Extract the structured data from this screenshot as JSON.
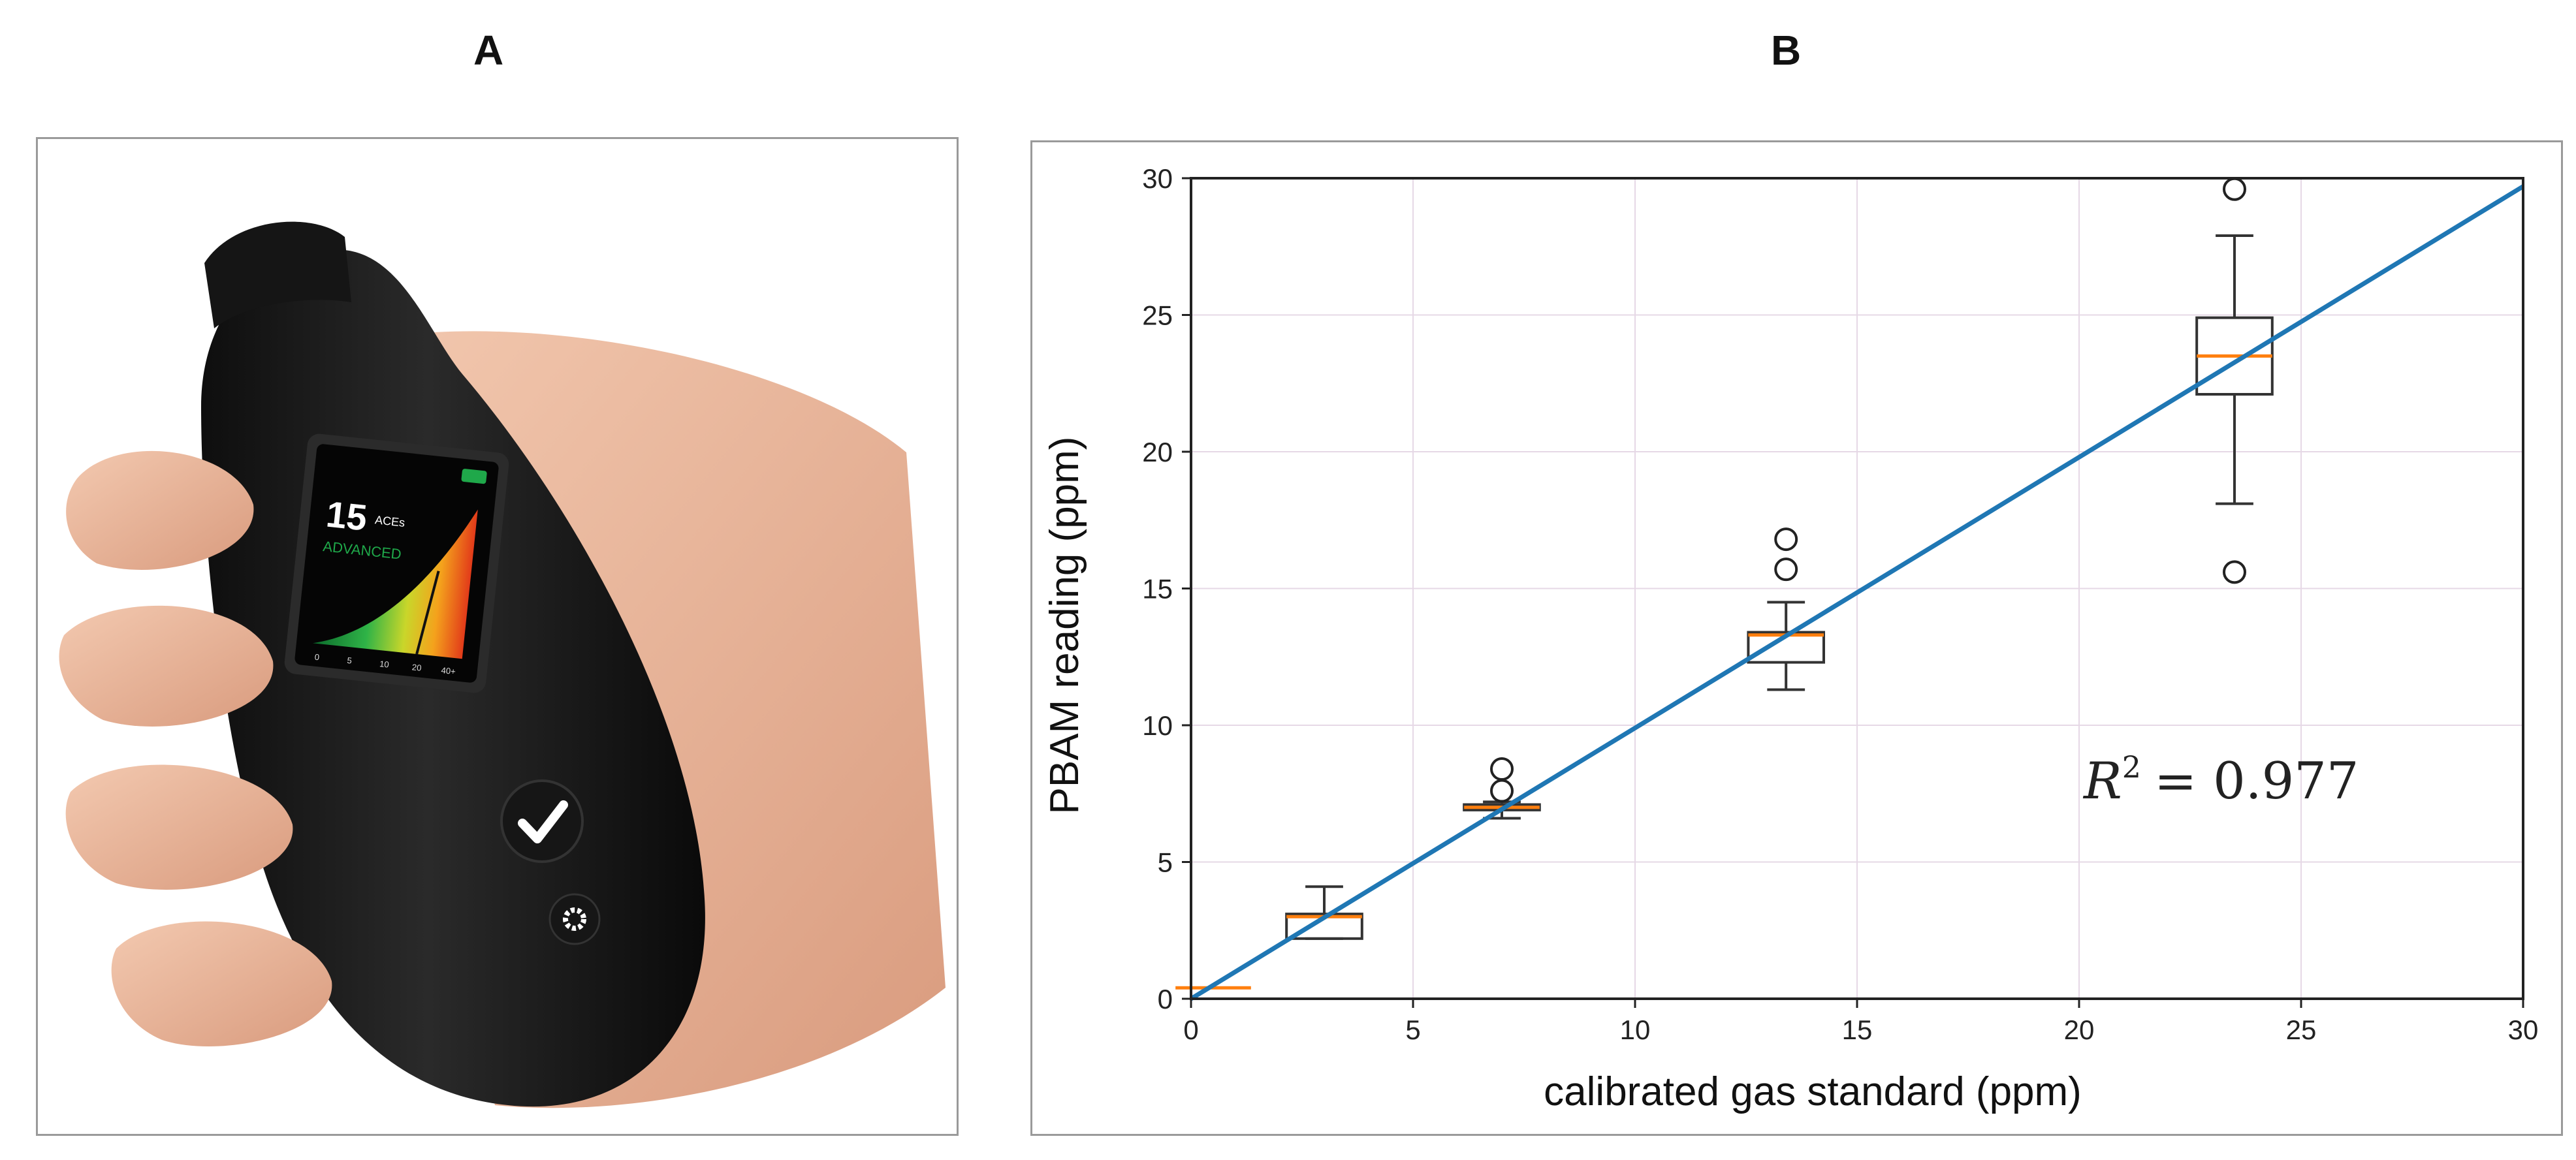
{
  "panels": {
    "a_label": "A",
    "b_label": "B"
  },
  "device": {
    "screen_value": "15",
    "screen_unit": "ACEs",
    "screen_status": "ADVANCED",
    "scale_ticks": [
      "0",
      "5",
      "10",
      "20",
      "40+"
    ],
    "check_icon": "check-icon",
    "settings_icon": "gear-icon",
    "battery_icon": "battery-icon",
    "colors": {
      "body": "#1a1a1a",
      "skin": "#e9b79c",
      "status_green": "#1fa84a"
    }
  },
  "chart_data": {
    "type": "box",
    "xlabel": "calibrated gas standard (ppm)",
    "ylabel": "PBAM reading (ppm)",
    "xlim": [
      0,
      30
    ],
    "ylim": [
      0,
      30
    ],
    "xticks": [
      0,
      5,
      10,
      15,
      20,
      25,
      30
    ],
    "yticks": [
      0,
      5,
      10,
      15,
      20,
      25,
      30
    ],
    "grid": true,
    "annotation": {
      "text": "R² = 0.977",
      "r_squared": "0.977"
    },
    "boxes": [
      {
        "x": 0.5,
        "q1": 0.4,
        "median": 0.4,
        "q3": 0.4,
        "whisker_low": 0.4,
        "whisker_high": 0.4,
        "outliers": []
      },
      {
        "x": 3.0,
        "q1": 2.2,
        "median": 3.0,
        "q3": 3.1,
        "whisker_low": 2.2,
        "whisker_high": 4.1,
        "outliers": []
      },
      {
        "x": 7.0,
        "q1": 6.9,
        "median": 7.0,
        "q3": 7.1,
        "whisker_low": 6.6,
        "whisker_high": 7.2,
        "outliers": [
          7.6,
          8.4
        ]
      },
      {
        "x": 13.4,
        "q1": 12.3,
        "median": 13.3,
        "q3": 13.4,
        "whisker_low": 11.3,
        "whisker_high": 14.5,
        "outliers": [
          15.7,
          16.8
        ]
      },
      {
        "x": 23.5,
        "q1": 22.1,
        "median": 23.5,
        "q3": 24.9,
        "whisker_low": 18.1,
        "whisker_high": 27.9,
        "outliers": [
          15.6,
          29.6
        ]
      }
    ],
    "fit_line": {
      "x": [
        0,
        30
      ],
      "y": [
        0,
        29.7
      ]
    },
    "colors": {
      "fit": "#1f77b4",
      "median": "#ff7f0e",
      "box": "#333333",
      "grid": "#e6d8e6"
    }
  }
}
